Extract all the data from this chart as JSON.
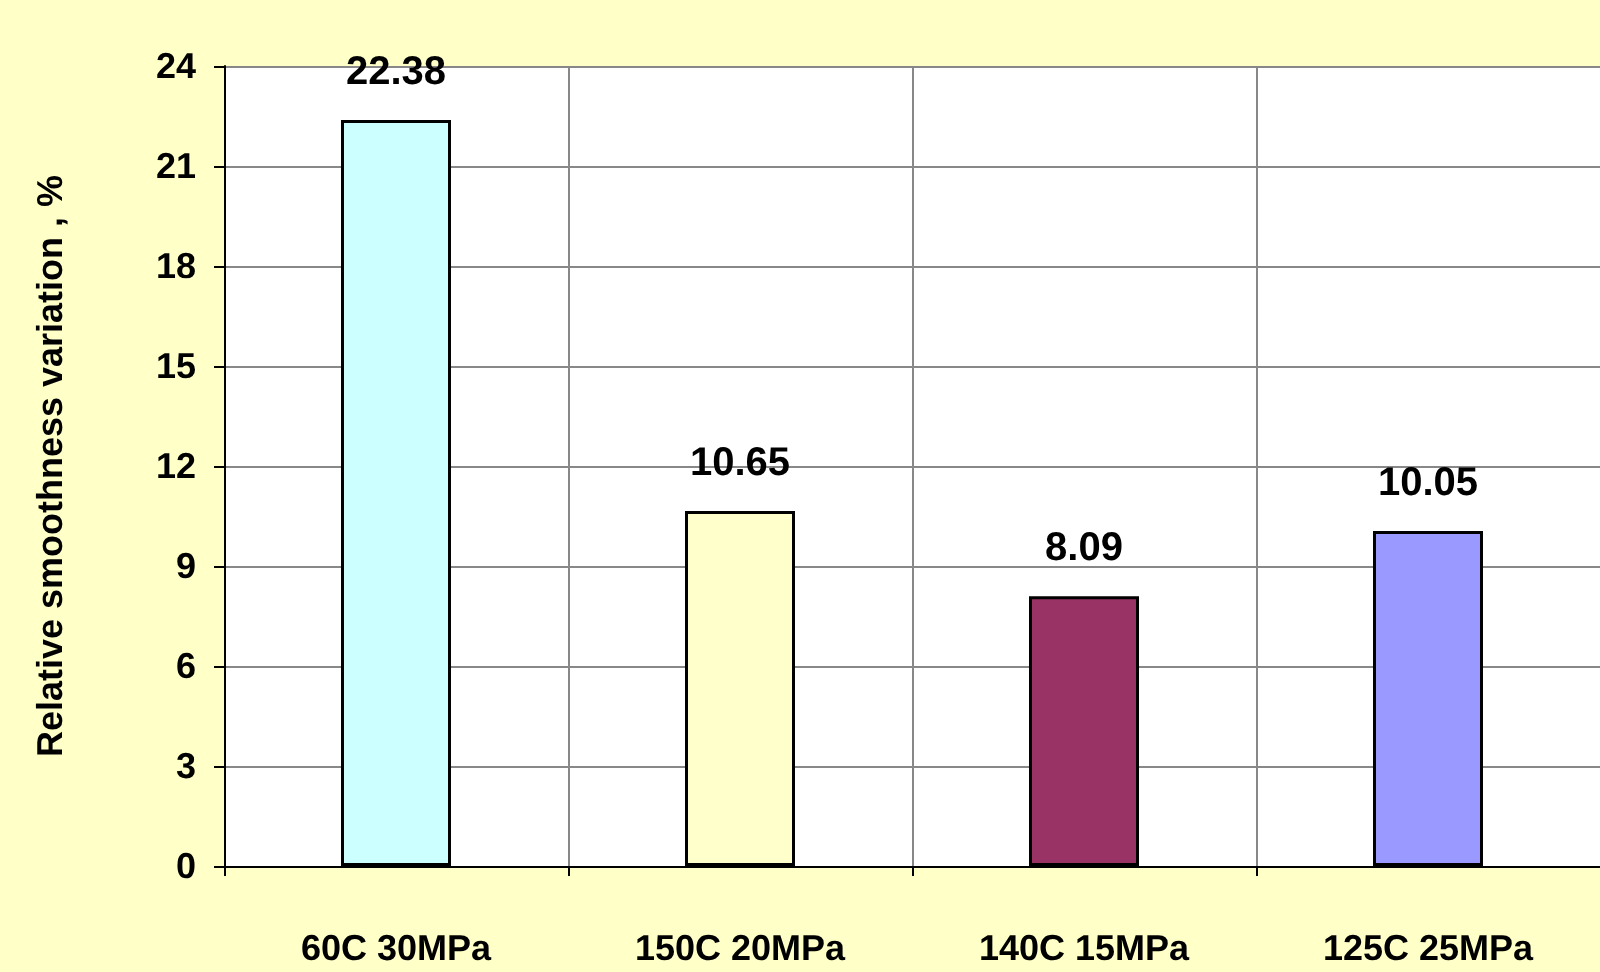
{
  "chart_data": {
    "type": "bar",
    "ylabel": "Relative smoothness variation , %",
    "categories": [
      "60C 30MPa",
      "150C 20MPa",
      "140C 15MPa",
      "125C 25MPa"
    ],
    "values": [
      22.38,
      10.65,
      8.09,
      10.05
    ],
    "colors": [
      "#ccffff",
      "#ffffcc",
      "#993366",
      "#9999ff"
    ],
    "ylim": [
      0,
      24
    ],
    "yticks": [
      0,
      3,
      6,
      9,
      12,
      15,
      18,
      21,
      24
    ],
    "grid": true,
    "data_labels": true
  }
}
